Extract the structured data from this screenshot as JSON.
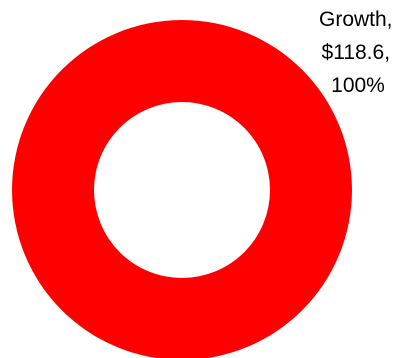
{
  "chart_data": {
    "type": "pie",
    "variant": "doughnut",
    "title": "",
    "legend": "none",
    "slices": [
      {
        "name": "Growth",
        "value": 118.6,
        "value_label": "$118.6",
        "percent": 100,
        "percent_label": "100%",
        "color": "#ff0000"
      }
    ],
    "data_label_lines": [
      "Growth,",
      "$118.6,",
      "100%"
    ]
  }
}
